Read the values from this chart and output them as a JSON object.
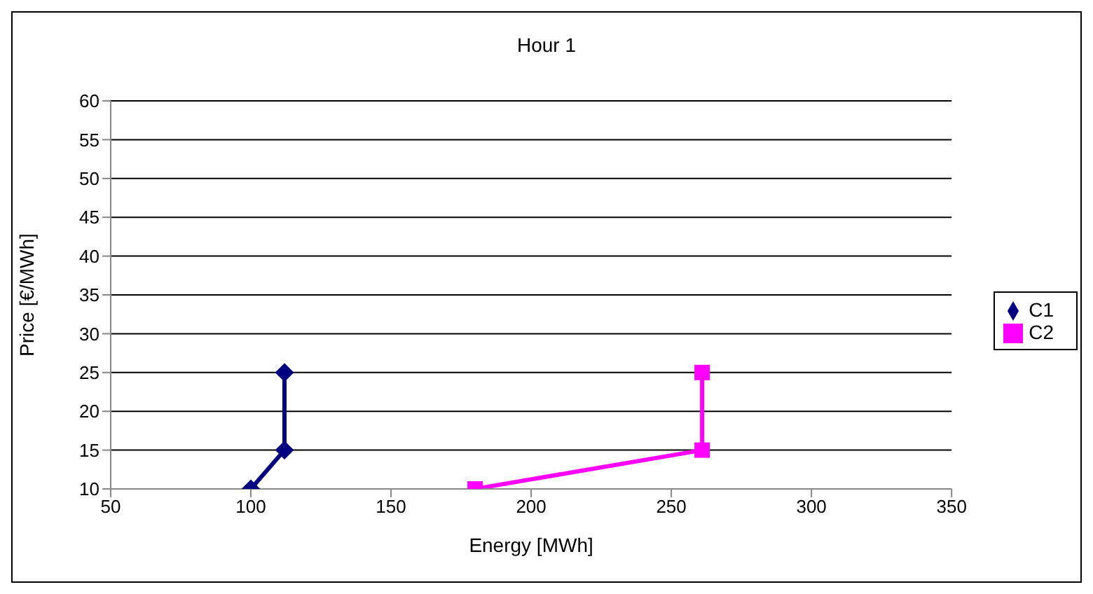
{
  "chart_data": {
    "type": "line",
    "title": "Hour 1",
    "xlabel": "Energy [MWh]",
    "ylabel": "Price [€/MWh]",
    "xlim": [
      50,
      350
    ],
    "xticks": [
      50,
      100,
      150,
      200,
      250,
      300,
      350
    ],
    "ylim": [
      10,
      60
    ],
    "yticks": [
      10,
      15,
      20,
      25,
      30,
      35,
      40,
      45,
      50,
      55,
      60
    ],
    "grid": "y",
    "legend": "right",
    "series": [
      {
        "name": "C1",
        "color": "#000080",
        "marker": "diamond",
        "x": [
          100,
          112,
          112
        ],
        "values": [
          10,
          15,
          25
        ]
      },
      {
        "name": "C2",
        "color": "#ff00ff",
        "marker": "square",
        "x": [
          180,
          261,
          261
        ],
        "values": [
          10,
          15,
          25
        ]
      }
    ]
  }
}
